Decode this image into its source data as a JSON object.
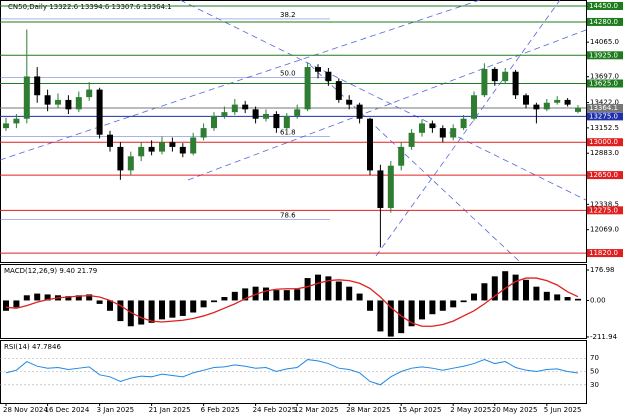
{
  "chart_data": {
    "type": "candlestick",
    "title": "CN50,Daily  13322.6  13394.6  13307.6  13364.1",
    "up_color": "#2e7d32",
    "down_color": "#000000",
    "categories": [
      "28 Nov 2024",
      null,
      null,
      null,
      "16 Dec 2024",
      null,
      null,
      null,
      null,
      "3 Jan 2025",
      null,
      null,
      null,
      null,
      "21 Jan 2025",
      null,
      null,
      null,
      null,
      "6 Feb 2025",
      null,
      null,
      null,
      null,
      "24 Feb 2025",
      null,
      null,
      null,
      "12 Mar 2025",
      null,
      null,
      null,
      null,
      "28 Mar 2025",
      null,
      null,
      null,
      null,
      "15 Apr 2025",
      null,
      null,
      null,
      null,
      "2 May 2025",
      null,
      null,
      null,
      "20 May 2025",
      null,
      null,
      null,
      null,
      "5 Jun 2025",
      null,
      null,
      null
    ],
    "candles": [
      [
        13150,
        13260,
        13120,
        13200
      ],
      [
        13200,
        13300,
        13150,
        13250
      ],
      [
        13250,
        14200,
        13200,
        13700
      ],
      [
        13700,
        13800,
        13420,
        13500
      ],
      [
        13500,
        13560,
        13330,
        13400
      ],
      [
        13400,
        13520,
        13360,
        13450
      ],
      [
        13450,
        13500,
        13300,
        13350
      ],
      [
        13350,
        13540,
        13320,
        13480
      ],
      [
        13480,
        13640,
        13440,
        13560
      ],
      [
        13560,
        13580,
        13040,
        13080
      ],
      [
        13080,
        13120,
        12900,
        12950
      ],
      [
        12950,
        13000,
        12600,
        12700
      ],
      [
        12700,
        12900,
        12650,
        12850
      ],
      [
        12850,
        13000,
        12800,
        12950
      ],
      [
        12950,
        13020,
        12860,
        12900
      ],
      [
        12900,
        13060,
        12870,
        13000
      ],
      [
        13000,
        13050,
        12900,
        12950
      ],
      [
        12950,
        12990,
        12840,
        12880
      ],
      [
        12880,
        13100,
        12860,
        13050
      ],
      [
        13050,
        13200,
        13020,
        13150
      ],
      [
        13150,
        13320,
        13120,
        13280
      ],
      [
        13280,
        13380,
        13250,
        13320
      ],
      [
        13320,
        13460,
        13290,
        13400
      ],
      [
        13400,
        13440,
        13310,
        13350
      ],
      [
        13350,
        13380,
        13200,
        13250
      ],
      [
        13250,
        13350,
        13220,
        13300
      ],
      [
        13300,
        13330,
        13100,
        13150
      ],
      [
        13150,
        13310,
        13120,
        13280
      ],
      [
        13280,
        13400,
        13250,
        13350
      ],
      [
        13350,
        13850,
        13330,
        13800
      ],
      [
        13800,
        13830,
        13680,
        13750
      ],
      [
        13750,
        13790,
        13600,
        13650
      ],
      [
        13650,
        13680,
        13420,
        13450
      ],
      [
        13450,
        13500,
        13350,
        13400
      ],
      [
        13400,
        13420,
        13200,
        13250
      ],
      [
        13250,
        13260,
        12650,
        12700
      ],
      [
        12700,
        12760,
        11880,
        12300
      ],
      [
        12300,
        12800,
        12250,
        12750
      ],
      [
        12750,
        13000,
        12700,
        12950
      ],
      [
        12950,
        13140,
        12920,
        13100
      ],
      [
        13100,
        13240,
        13060,
        13200
      ],
      [
        13200,
        13230,
        13100,
        13150
      ],
      [
        13150,
        13180,
        13000,
        13050
      ],
      [
        13050,
        13190,
        13020,
        13150
      ],
      [
        13150,
        13290,
        13130,
        13250
      ],
      [
        13250,
        13540,
        13230,
        13500
      ],
      [
        13500,
        13840,
        13480,
        13780
      ],
      [
        13780,
        13800,
        13600,
        13650
      ],
      [
        13650,
        13790,
        13620,
        13750
      ],
      [
        13750,
        13770,
        13460,
        13500
      ],
      [
        13500,
        13520,
        13360,
        13400
      ],
      [
        13400,
        13420,
        13200,
        13350
      ],
      [
        13350,
        13460,
        13330,
        13420
      ],
      [
        13420,
        13490,
        13400,
        13450
      ],
      [
        13450,
        13470,
        13380,
        13400
      ],
      [
        13322.6,
        13394.6,
        13307.6,
        13364.1
      ]
    ],
    "ylim": [
      11725,
      14503
    ],
    "yticks": [
      {
        "value": 14065,
        "label": "14065.0"
      },
      {
        "value": 13697,
        "label": "13697.0"
      },
      {
        "value": 13422,
        "label": "13422.0"
      },
      {
        "value": 13152.5,
        "label": "13152.5"
      },
      {
        "value": 12883,
        "label": "12883.0"
      },
      {
        "value": 12338.5,
        "label": "12338.5"
      },
      {
        "value": 12069,
        "label": "12069.0"
      }
    ],
    "levels": [
      {
        "value": 14450,
        "label": "14450.0",
        "color": "#1e7b1e"
      },
      {
        "value": 14280,
        "label": "14280.0",
        "color": "#1e7b1e"
      },
      {
        "value": 13925,
        "label": "13925.0",
        "color": "#1e7b1e"
      },
      {
        "value": 13625,
        "label": "13625.0",
        "color": "#1e7b1e"
      },
      {
        "value": 13364.1,
        "label": "13364.1",
        "color": "#777777"
      },
      {
        "value": 13275,
        "label": "13275.0",
        "color": "#1f2fa8"
      },
      {
        "value": 13000,
        "label": "13000.0",
        "color": "#e02020"
      },
      {
        "value": 12650,
        "label": "12650.0",
        "color": "#e02020"
      },
      {
        "value": 12275,
        "label": "12275.0",
        "color": "#e02020"
      },
      {
        "value": 11820,
        "label": "11820.0",
        "color": "#e02020"
      }
    ],
    "fib_levels": [
      {
        "label": "38.2",
        "value": 14312
      },
      {
        "label": "50.0",
        "value": 13687
      },
      {
        "label": "61.8",
        "value": 13061
      },
      {
        "label": "78.6",
        "value": 12180
      }
    ],
    "macd": {
      "label": "MACD(12,26,9) 9.40 21.79",
      "ylim": [
        -224,
        206
      ],
      "yticks": [
        {
          "value": 176.98,
          "label": "176.98"
        },
        {
          "value": 0,
          "label": "0.00"
        },
        {
          "value": -211.94,
          "label": "-211.94"
        }
      ],
      "histogram": [
        -60,
        -40,
        30,
        40,
        35,
        30,
        25,
        30,
        35,
        -20,
        -60,
        -120,
        -150,
        -140,
        -130,
        -110,
        -100,
        -90,
        -70,
        -40,
        -10,
        20,
        50,
        70,
        80,
        75,
        60,
        60,
        65,
        130,
        150,
        140,
        110,
        80,
        40,
        -60,
        -180,
        -210,
        -190,
        -150,
        -110,
        -80,
        -60,
        -40,
        -10,
        40,
        100,
        140,
        170,
        150,
        120,
        80,
        50,
        35,
        20,
        9.4
      ],
      "signal": [
        -40,
        -45,
        -30,
        -10,
        5,
        15,
        20,
        25,
        28,
        20,
        0,
        -30,
        -70,
        -100,
        -120,
        -125,
        -120,
        -115,
        -105,
        -90,
        -70,
        -45,
        -20,
        10,
        35,
        55,
        65,
        68,
        68,
        80,
        100,
        115,
        120,
        115,
        100,
        70,
        20,
        -40,
        -90,
        -130,
        -150,
        -150,
        -140,
        -120,
        -90,
        -60,
        -20,
        25,
        70,
        110,
        130,
        130,
        115,
        90,
        50,
        21.79
      ],
      "hist_color": "#000000",
      "signal_color": "#e02020"
    },
    "rsi": {
      "label": "RSI(14) 47.7846",
      "ylim": [
        1,
        96
      ],
      "yticks": [
        70,
        50,
        30
      ],
      "color": "#1e88e5",
      "values": [
        48,
        52,
        65,
        58,
        55,
        56,
        53,
        55,
        57,
        45,
        42,
        35,
        40,
        43,
        42,
        46,
        44,
        42,
        48,
        52,
        56,
        57,
        60,
        58,
        55,
        56,
        50,
        54,
        56,
        68,
        66,
        62,
        55,
        53,
        48,
        35,
        30,
        42,
        50,
        55,
        57,
        55,
        52,
        55,
        58,
        62,
        68,
        62,
        65,
        56,
        52,
        50,
        53,
        54,
        50,
        47.7846
      ]
    }
  }
}
